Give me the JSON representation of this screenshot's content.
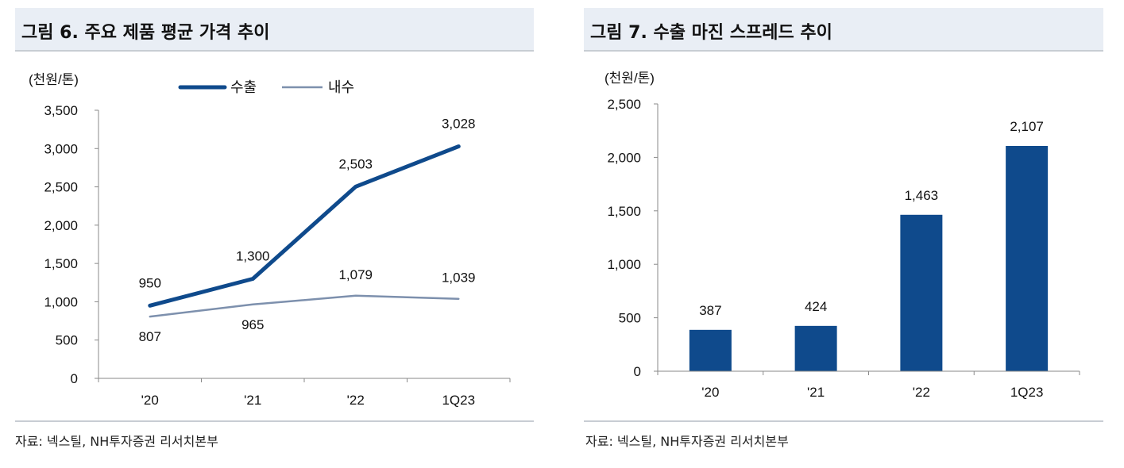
{
  "panels": [
    {
      "title": "그림 6. 주요 제품 평균 가격 추이",
      "source": "자료: 넥스틸, NH투자증권 리서치본부"
    },
    {
      "title": "그림 7. 수출 마진 스프레드 추이",
      "source": "자료: 넥스틸, NH투자증권 리서치본부"
    }
  ],
  "chart_data": [
    {
      "type": "line",
      "unit_label": "(천원/톤)",
      "categories": [
        "'20",
        "'21",
        "'22",
        "1Q23"
      ],
      "series": [
        {
          "name": "수출",
          "values": [
            950,
            1300,
            2503,
            3028
          ],
          "labels": [
            "950",
            "1,300",
            "2,503",
            "3,028"
          ],
          "color": "#0f4a8c"
        },
        {
          "name": "내수",
          "values": [
            807,
            965,
            1079,
            1039
          ],
          "labels": [
            "807",
            "965",
            "1,079",
            "1,039"
          ],
          "color": "#7d90ad"
        }
      ],
      "ylim": [
        0,
        3500
      ],
      "yticks": [
        "0",
        "500",
        "1,000",
        "1,500",
        "2,000",
        "2,500",
        "3,000",
        "3,500"
      ],
      "legend_position": "top",
      "grid": false
    },
    {
      "type": "bar",
      "unit_label": "(천원/톤)",
      "categories": [
        "'20",
        "'21",
        "'22",
        "1Q23"
      ],
      "values": [
        387,
        424,
        1463,
        2107
      ],
      "labels": [
        "387",
        "424",
        "1,463",
        "2,107"
      ],
      "color": "#0f4a8c",
      "ylim": [
        0,
        2500
      ],
      "yticks": [
        "0",
        "500",
        "1,000",
        "1,500",
        "2,000",
        "2,500"
      ],
      "grid": false
    }
  ]
}
